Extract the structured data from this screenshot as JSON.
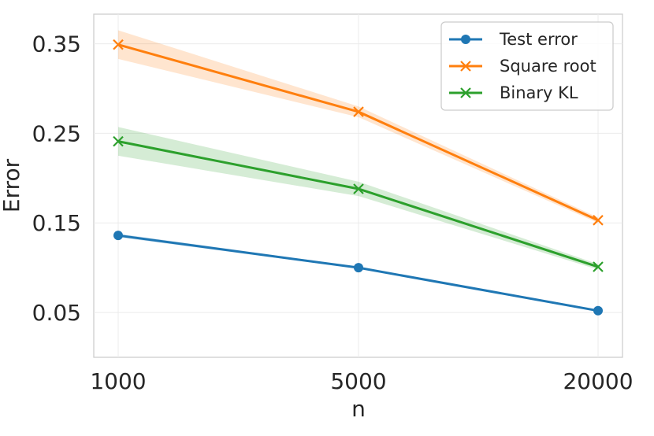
{
  "chart_data": {
    "type": "line",
    "xlabel": "n",
    "ylabel": "Error",
    "categories": [
      "1000",
      "5000",
      "20000"
    ],
    "yticks": [
      0.05,
      0.15,
      0.25,
      0.35
    ],
    "ytick_labels": [
      "0.05",
      "0.15",
      "0.25",
      "0.35"
    ],
    "ylim": [
      0.0,
      0.383
    ],
    "grid": true,
    "legend_position": "top-right",
    "series": [
      {
        "name": "Test error",
        "marker": "circle",
        "color": "#1f77b4",
        "values": [
          0.136,
          0.1,
          0.052
        ],
        "band_low": [
          0.134,
          0.099,
          0.051
        ],
        "band_high": [
          0.138,
          0.101,
          0.053
        ]
      },
      {
        "name": "Square root",
        "marker": "x",
        "color": "#ff7f0e",
        "values": [
          0.349,
          0.274,
          0.153
        ],
        "band_low": [
          0.333,
          0.268,
          0.15
        ],
        "band_high": [
          0.365,
          0.28,
          0.156
        ]
      },
      {
        "name": "Binary KL",
        "marker": "x",
        "color": "#2ca02c",
        "values": [
          0.241,
          0.188,
          0.101
        ],
        "band_low": [
          0.225,
          0.18,
          0.098
        ],
        "band_high": [
          0.257,
          0.196,
          0.104
        ]
      }
    ]
  }
}
